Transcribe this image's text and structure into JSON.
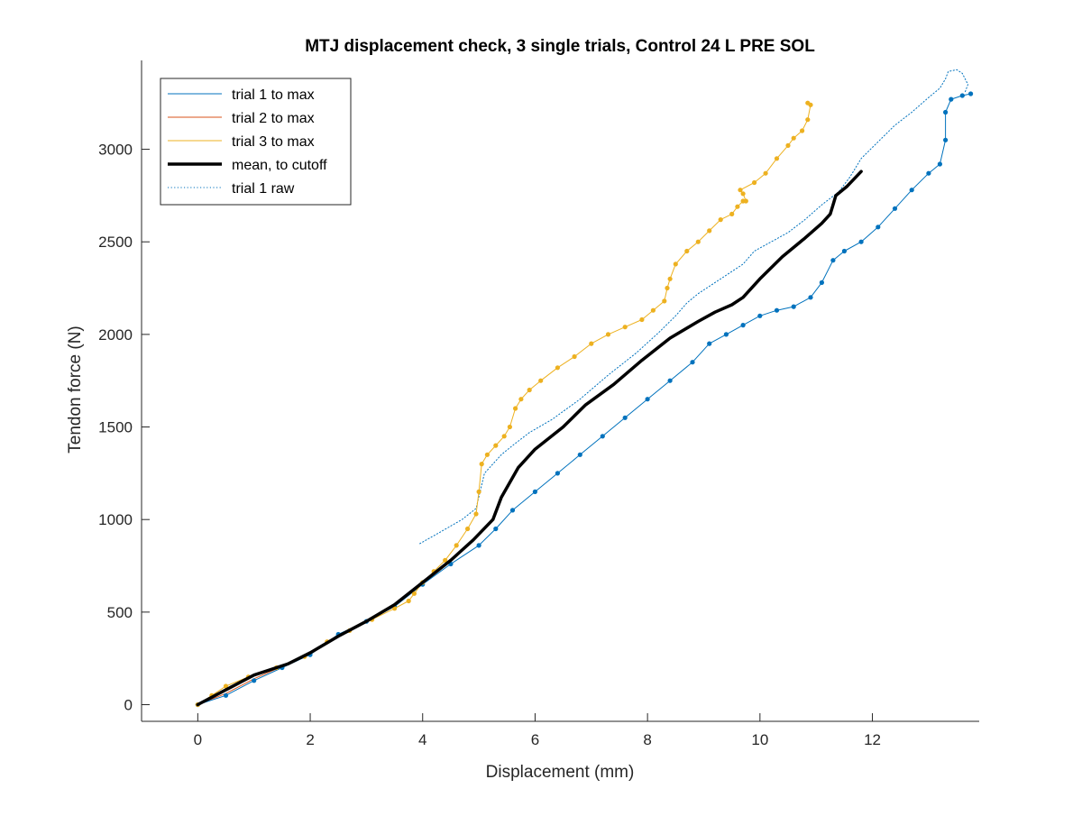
{
  "chart_data": {
    "type": "line",
    "title": "MTJ displacement check, 3 single trials, Control 24 L PRE SOL",
    "xlabel": "Displacement (mm)",
    "ylabel": "Tendon force (N)",
    "xlim": [
      -1,
      13.9
    ],
    "ylim": [
      -90,
      3480
    ],
    "xticks": [
      0,
      2,
      4,
      6,
      8,
      10,
      12
    ],
    "xtick_labels": [
      "0",
      "2",
      "4",
      "6",
      "8",
      "10",
      "12"
    ],
    "yticks": [
      0,
      500,
      1000,
      1500,
      2000,
      2500,
      3000
    ],
    "ytick_labels": [
      "0",
      "500",
      "1000",
      "1500",
      "2000",
      "2500",
      "3000"
    ],
    "grid": false,
    "legend_position": "top-left",
    "colors": {
      "trial1": "#0072BD",
      "trial2": "#D95319",
      "trial3": "#EDB120",
      "mean": "#000000"
    },
    "legend": [
      {
        "label": "trial 1 to max",
        "color": "#0072BD",
        "style": "solid",
        "width": 1
      },
      {
        "label": "trial 2 to max",
        "color": "#D95319",
        "style": "solid",
        "width": 1
      },
      {
        "label": "trial 3 to max",
        "color": "#EDB120",
        "style": "solid",
        "width": 1
      },
      {
        "label": "mean, to cutoff",
        "color": "#000000",
        "style": "solid",
        "width": 3.5
      },
      {
        "label": "trial 1 raw",
        "color": "#0072BD",
        "style": "dotted",
        "width": 1
      }
    ],
    "series": [
      {
        "name": "trial 1 to max",
        "color": "#0072BD",
        "width": 1,
        "markers": true,
        "x": [
          0,
          0.5,
          1.0,
          1.5,
          2.0,
          2.5,
          3.0,
          3.5,
          4.0,
          4.5,
          5.0,
          5.3,
          5.6,
          6.0,
          6.4,
          6.8,
          7.2,
          7.6,
          8.0,
          8.4,
          8.8,
          9.1,
          9.4,
          9.7,
          10.0,
          10.3,
          10.6,
          10.9,
          11.1,
          11.3,
          11.5,
          11.8,
          12.1,
          12.4,
          12.7,
          13.0,
          13.2,
          13.3,
          13.3,
          13.4,
          13.6,
          13.75
        ],
        "y": [
          0,
          50,
          130,
          200,
          270,
          380,
          450,
          530,
          650,
          760,
          860,
          950,
          1050,
          1150,
          1250,
          1350,
          1450,
          1550,
          1650,
          1750,
          1850,
          1950,
          2000,
          2050,
          2100,
          2130,
          2150,
          2200,
          2280,
          2400,
          2450,
          2500,
          2580,
          2680,
          2780,
          2870,
          2920,
          3050,
          3200,
          3270,
          3290,
          3300
        ]
      },
      {
        "name": "trial 2 to max",
        "color": "#D95319",
        "width": 1,
        "markers": false,
        "x": [
          0,
          0.5,
          1.0,
          1.6,
          2.0
        ],
        "y": [
          0,
          60,
          140,
          220,
          270
        ]
      },
      {
        "name": "trial 3 to max",
        "color": "#EDB120",
        "width": 1,
        "markers": true,
        "x": [
          0,
          0.25,
          0.5,
          0.9,
          1.4,
          1.9,
          2.3,
          2.7,
          3.1,
          3.5,
          3.75,
          3.85,
          4.0,
          4.2,
          4.4,
          4.6,
          4.8,
          4.95,
          5.0,
          5.05,
          5.15,
          5.3,
          5.45,
          5.55,
          5.65,
          5.75,
          5.9,
          6.1,
          6.4,
          6.7,
          7.0,
          7.3,
          7.6,
          7.9,
          8.1,
          8.3,
          8.35,
          8.4,
          8.5,
          8.7,
          8.9,
          9.1,
          9.3,
          9.5,
          9.6,
          9.7,
          9.75,
          9.7,
          9.65,
          9.9,
          10.1,
          10.3,
          10.5,
          10.6,
          10.75,
          10.85,
          10.9,
          10.85
        ],
        "y": [
          0,
          50,
          100,
          150,
          200,
          260,
          340,
          400,
          460,
          520,
          560,
          600,
          660,
          720,
          780,
          860,
          950,
          1030,
          1150,
          1300,
          1350,
          1400,
          1450,
          1500,
          1600,
          1650,
          1700,
          1750,
          1820,
          1880,
          1950,
          2000,
          2040,
          2080,
          2130,
          2180,
          2250,
          2300,
          2380,
          2450,
          2500,
          2560,
          2620,
          2650,
          2690,
          2720,
          2720,
          2760,
          2780,
          2820,
          2870,
          2950,
          3020,
          3060,
          3100,
          3160,
          3240,
          3250
        ]
      },
      {
        "name": "mean, to cutoff",
        "color": "#000000",
        "width": 3.5,
        "markers": false,
        "x": [
          0,
          0.5,
          1.0,
          1.6,
          2.0,
          2.5,
          3.0,
          3.5,
          4.0,
          4.5,
          4.9,
          5.25,
          5.4,
          5.7,
          6.0,
          6.5,
          6.9,
          7.4,
          7.9,
          8.4,
          8.9,
          9.2,
          9.5,
          9.7,
          10.0,
          10.4,
          10.8,
          11.1,
          11.25,
          11.3,
          11.35,
          11.55,
          11.8
        ],
        "y": [
          0,
          80,
          160,
          220,
          280,
          370,
          450,
          540,
          660,
          780,
          890,
          1000,
          1120,
          1280,
          1380,
          1500,
          1620,
          1730,
          1860,
          1980,
          2070,
          2120,
          2160,
          2200,
          2300,
          2420,
          2520,
          2600,
          2650,
          2700,
          2750,
          2800,
          2880
        ]
      },
      {
        "name": "trial 1 raw",
        "color": "#0072BD",
        "width": 1,
        "dotted": true,
        "markers": false,
        "x": [
          3.95,
          4.3,
          4.7,
          4.95,
          5.1,
          5.4,
          5.6,
          5.9,
          6.3,
          6.8,
          7.3,
          7.8,
          8.2,
          8.5,
          8.7,
          8.9,
          9.3,
          9.7,
          9.9,
          10.2,
          10.5,
          10.8,
          11.1,
          11.4,
          11.6,
          11.8,
          12.1,
          12.4,
          12.7,
          13.0,
          13.2,
          13.3,
          13.35,
          13.5,
          13.6,
          13.7,
          13.65
        ],
        "y": [
          870,
          930,
          1000,
          1060,
          1250,
          1350,
          1400,
          1470,
          1540,
          1650,
          1780,
          1900,
          2010,
          2100,
          2170,
          2220,
          2300,
          2380,
          2450,
          2500,
          2550,
          2620,
          2700,
          2770,
          2850,
          2950,
          3040,
          3130,
          3200,
          3280,
          3330,
          3380,
          3420,
          3430,
          3410,
          3350,
          3310
        ]
      }
    ]
  }
}
